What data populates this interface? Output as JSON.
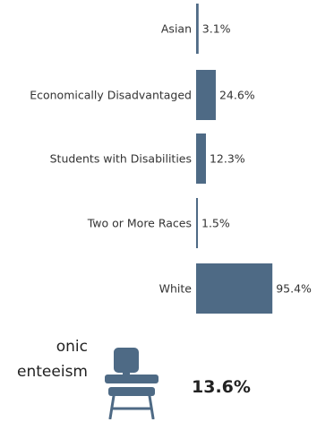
{
  "chart_data": {
    "type": "bar",
    "orientation": "horizontal",
    "categories": [
      "Asian",
      "Economically Disadvantaged",
      "Students with Disabilities",
      "Two or More Races",
      "White"
    ],
    "values": [
      3.1,
      24.6,
      12.3,
      1.5,
      95.4
    ],
    "value_labels": [
      "3.1%",
      "24.6%",
      "12.3%",
      "1.5%",
      "95.4%"
    ],
    "xlim": [
      0,
      100
    ],
    "bar_color": "#4e6a85",
    "grid": false
  },
  "metric": {
    "label_line1": "onic",
    "label_line2": "enteeism",
    "value": "13.6%",
    "icon": "school-desk-icon",
    "icon_color": "#4e6a85"
  }
}
